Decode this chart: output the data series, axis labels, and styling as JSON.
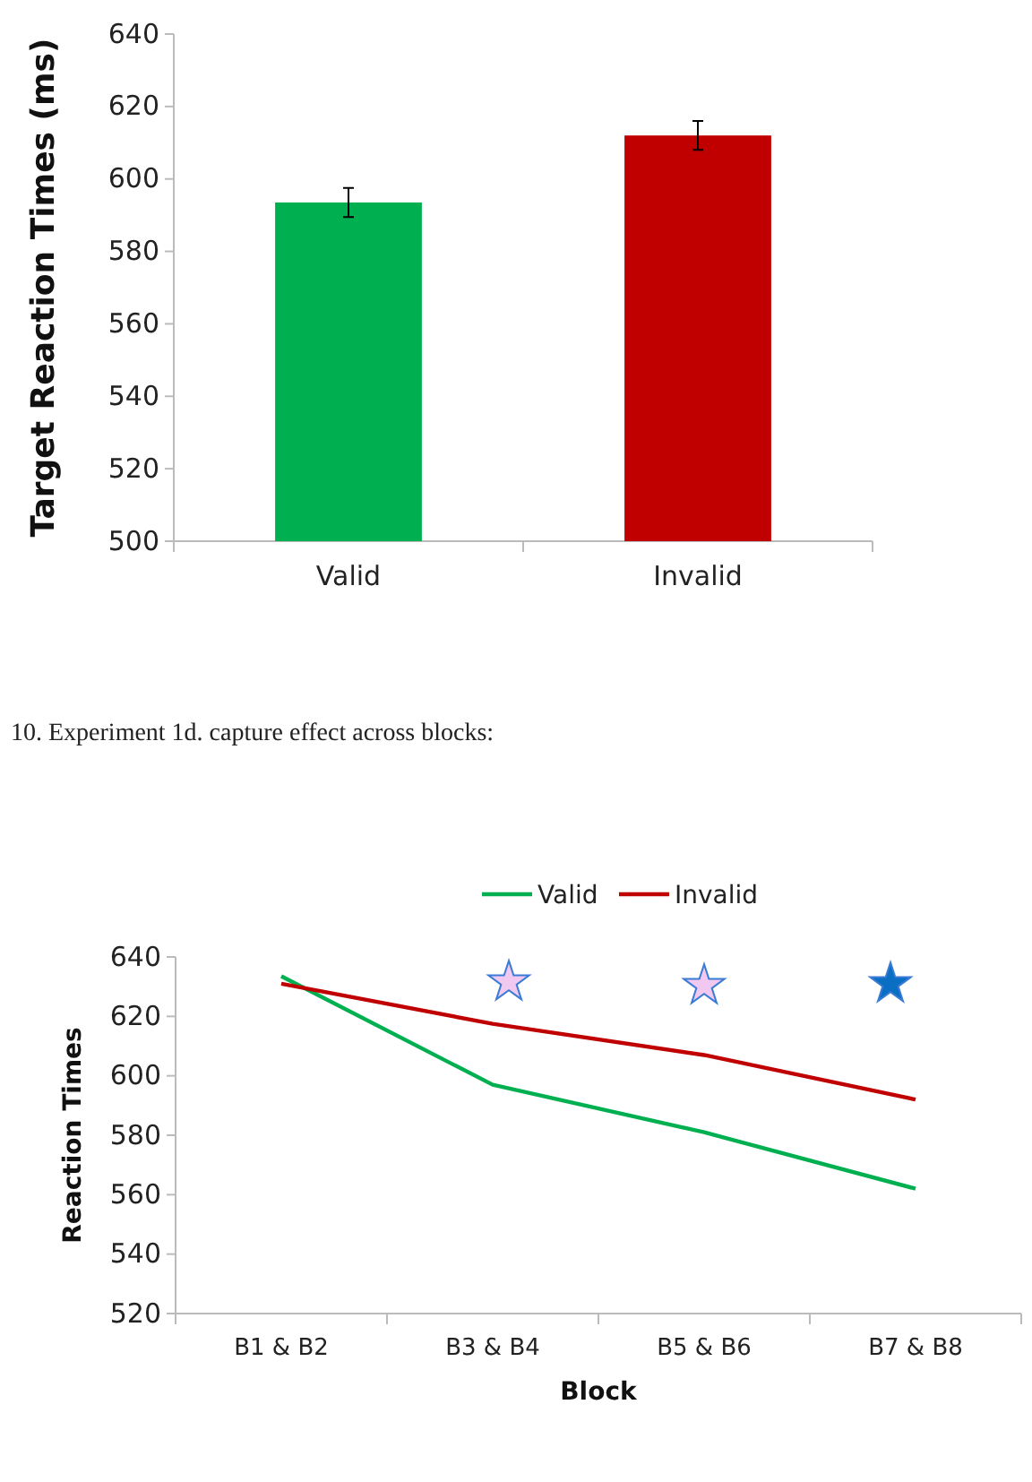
{
  "chart_data": [
    {
      "type": "bar",
      "ylabel": "Target Reaction Times (ms)",
      "categories": [
        "Valid",
        "Invalid"
      ],
      "values": [
        593.5,
        612
      ],
      "errors": [
        4,
        4
      ],
      "colors": [
        "#00b050",
        "#c00000"
      ],
      "ylim": [
        500,
        640
      ],
      "yticks": [
        500,
        520,
        540,
        560,
        580,
        600,
        620,
        640
      ],
      "grid": false,
      "legend": false
    },
    {
      "type": "line",
      "title": "10. Experiment 1d. capture effect across blocks:",
      "xlabel": "Block",
      "ylabel": "Reaction Times",
      "categories": [
        "B1 & B2",
        "B3 & B4",
        "B5 & B6",
        "B7 & B8"
      ],
      "series": [
        {
          "name": "Valid",
          "color": "#00b050",
          "values": [
            633.5,
            597,
            581,
            562
          ]
        },
        {
          "name": "Invalid",
          "color": "#c00000",
          "values": [
            631,
            617.5,
            607,
            592
          ]
        }
      ],
      "ylim": [
        520,
        640
      ],
      "yticks": [
        520,
        540,
        560,
        580,
        600,
        620,
        640
      ],
      "grid": false,
      "legend": "top",
      "marker": "none",
      "line_style": "solid"
    }
  ]
}
